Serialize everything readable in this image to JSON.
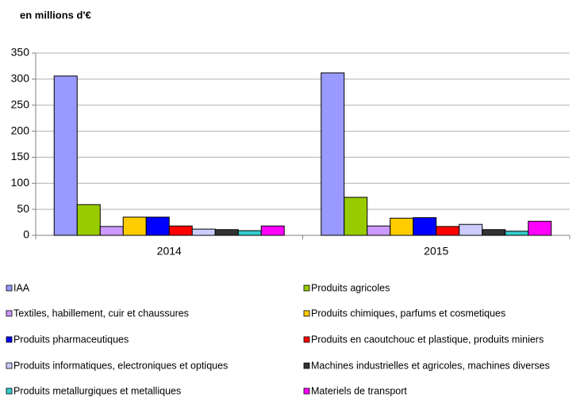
{
  "chart_data": {
    "type": "bar",
    "title": "en millions  d'€",
    "categories": [
      "2014",
      "2015"
    ],
    "series": [
      {
        "name": "IAA",
        "color": "#9999ff",
        "values": [
          306,
          312
        ]
      },
      {
        "name": "Produits agricoles",
        "color": "#99cc00",
        "values": [
          59,
          73
        ]
      },
      {
        "name": "Textiles, habillement, cuir et chaussures",
        "color": "#cc99ff",
        "values": [
          17,
          18
        ]
      },
      {
        "name": "Produits chimiques, parfums et cosmetiques",
        "color": "#ffcc00",
        "values": [
          35,
          33
        ]
      },
      {
        "name": "Produits pharmaceutiques",
        "color": "#0000ff",
        "values": [
          35,
          34
        ]
      },
      {
        "name": "Produits en caoutchouc et plastique, produits miniers",
        "color": "#ff0000",
        "values": [
          18,
          17
        ]
      },
      {
        "name": "Produits informatiques, electroniques et optiques",
        "color": "#ccccff",
        "values": [
          12,
          21
        ]
      },
      {
        "name": "Machines industrielles et agricoles, machines diverses",
        "color": "#333333",
        "values": [
          11,
          11
        ]
      },
      {
        "name": "Produits metallurgiques et metalliques",
        "color": "#33cccc",
        "values": [
          9,
          8
        ]
      },
      {
        "name": "Materiels de transport",
        "color": "#ff00ff",
        "values": [
          18,
          27
        ]
      }
    ],
    "ylim": [
      0,
      350
    ],
    "yticks": [
      0,
      50,
      100,
      150,
      200,
      250,
      300,
      350
    ],
    "grid": true
  }
}
